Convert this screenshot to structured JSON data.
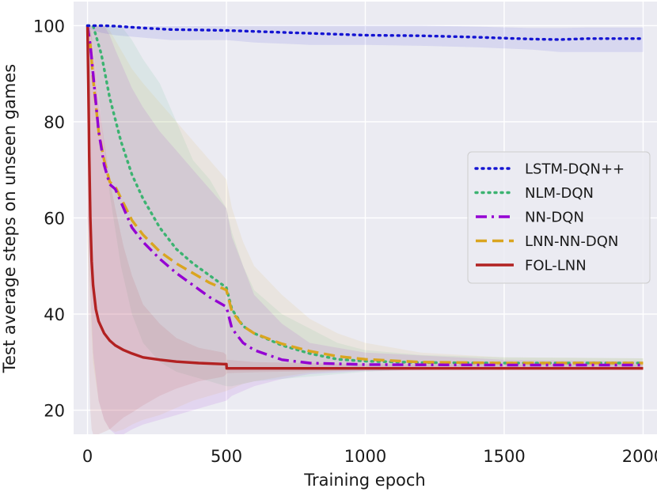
{
  "chart_data": {
    "type": "line",
    "xlabel": "Training epoch",
    "ylabel": "Test average steps on unseen games",
    "xlim": [
      -50,
      2050
    ],
    "ylim": [
      15,
      105
    ],
    "x_ticks": [
      0,
      500,
      1000,
      1500,
      2000
    ],
    "x_tick_labels": [
      "0",
      "500",
      "1000",
      "1500",
      "2000"
    ],
    "y_ticks": [
      20,
      40,
      60,
      80,
      100
    ],
    "y_tick_labels": [
      "20",
      "40",
      "60",
      "80",
      "100"
    ],
    "grid": true,
    "background": "#ebebf2",
    "legend_position": "center-right",
    "series": [
      {
        "name": "LSTM-DQN++",
        "color": "#1414d2",
        "style": "dotted",
        "x": [
          0,
          20,
          50,
          100,
          200,
          300,
          400,
          500,
          600,
          800,
          1000,
          1200,
          1400,
          1600,
          1700,
          1800,
          2000
        ],
        "y": [
          100,
          100,
          100,
          99.9,
          99.5,
          99.2,
          99.1,
          99.0,
          98.8,
          98.4,
          98.0,
          97.9,
          97.6,
          97.2,
          97.1,
          97.3,
          97.3
        ],
        "band_lower": [
          99.5,
          99,
          98.5,
          98,
          97.5,
          97,
          97,
          97,
          96.5,
          96,
          96,
          95.8,
          95.5,
          95,
          94.5,
          94.5,
          94.5
        ],
        "band_upper": [
          100,
          100,
          100,
          100,
          100,
          100,
          100,
          100,
          100,
          100,
          100,
          100,
          99.8,
          99.5,
          99.5,
          99.6,
          99.6
        ]
      },
      {
        "name": "NLM-DQN",
        "color": "#3cb371",
        "style": "dotted",
        "x": [
          0,
          20,
          50,
          80,
          120,
          160,
          200,
          260,
          320,
          380,
          440,
          500,
          520,
          560,
          600,
          700,
          800,
          900,
          1000,
          1200,
          1500,
          2000
        ],
        "y": [
          100,
          100,
          94,
          85,
          76,
          69,
          64,
          58,
          53.5,
          50.5,
          48,
          45.5,
          41,
          37.5,
          36,
          33.5,
          31.8,
          30.6,
          30.2,
          29.9,
          29.8,
          29.8
        ],
        "band_lower": [
          100,
          96,
          80,
          65,
          50,
          40,
          34,
          30,
          28,
          27,
          26,
          25,
          25,
          25.5,
          26,
          26.5,
          27,
          27.5,
          28,
          28.5,
          28.7,
          28.8
        ],
        "band_upper": [
          100,
          100,
          100,
          100,
          100,
          97,
          93,
          88,
          80,
          72,
          68,
          62,
          57,
          50,
          45,
          40,
          37,
          34,
          32.5,
          31.5,
          31,
          30.8
        ]
      },
      {
        "name": "NN-DQN",
        "color": "#9400d3",
        "style": "dashdot",
        "x": [
          0,
          10,
          20,
          40,
          60,
          80,
          100,
          130,
          160,
          200,
          260,
          320,
          380,
          440,
          500,
          520,
          560,
          600,
          700,
          800,
          1000,
          1500,
          2000
        ],
        "y": [
          100,
          96,
          90,
          78,
          71,
          67,
          66,
          62,
          58,
          55,
          51.5,
          48.5,
          46,
          43.5,
          41.5,
          37,
          34,
          32.5,
          30.5,
          29.8,
          29.5,
          29.4,
          29.4
        ],
        "band_lower": [
          60,
          45,
          32,
          22,
          18,
          16,
          15,
          15,
          16,
          17,
          18,
          19,
          20,
          21,
          22,
          23,
          24,
          25,
          26.5,
          27.5,
          28.2,
          28.6,
          28.7
        ],
        "band_upper": [
          100,
          100,
          100,
          100,
          100,
          98,
          95,
          91,
          87,
          83,
          78,
          74,
          70,
          66,
          62,
          56,
          50,
          44,
          38,
          34,
          32,
          30.5,
          30.2
        ]
      },
      {
        "name": "LNN-NN-DQN",
        "color": "#daa520",
        "style": "dashed",
        "x": [
          0,
          10,
          20,
          40,
          60,
          80,
          100,
          130,
          160,
          200,
          260,
          320,
          380,
          440,
          500,
          520,
          560,
          600,
          700,
          800,
          900,
          1000,
          1200,
          1500,
          2000
        ],
        "y": [
          100,
          96,
          89,
          78,
          72,
          67.5,
          66.5,
          63,
          59.5,
          56.5,
          53,
          50.5,
          48.5,
          46.5,
          45,
          40.5,
          37.5,
          36,
          33.8,
          32.3,
          31.2,
          30.6,
          30,
          29.8,
          29.8
        ],
        "band_lower": [
          55,
          42,
          30,
          22,
          18,
          16,
          15.5,
          16,
          17,
          18,
          19,
          20.5,
          22,
          23,
          24,
          24.5,
          25.5,
          26,
          27,
          27.8,
          28.2,
          28.5,
          28.7,
          28.8,
          28.8
        ],
        "band_upper": [
          100,
          100,
          100,
          100,
          100,
          99,
          97,
          94,
          91,
          88,
          84,
          80,
          76,
          72,
          68,
          62,
          55,
          50,
          44,
          39,
          36,
          34,
          32,
          31,
          30.8
        ]
      },
      {
        "name": "FOL-LNN",
        "color": "#b22222",
        "style": "solid",
        "x": [
          0,
          3,
          6,
          10,
          15,
          20,
          30,
          40,
          60,
          80,
          100,
          130,
          160,
          200,
          260,
          320,
          400,
          490,
          500,
          501,
          600,
          800,
          1000,
          1500,
          2000
        ],
        "y": [
          100,
          88,
          73,
          60,
          51,
          46,
          41,
          38.5,
          36,
          34.5,
          33.5,
          32.5,
          31.8,
          31.0,
          30.5,
          30.1,
          29.8,
          29.6,
          29.6,
          28.7,
          28.7,
          28.7,
          28.7,
          28.7,
          28.7
        ],
        "band_lower": [
          60,
          40,
          28,
          20,
          16,
          15,
          15,
          15,
          15.5,
          16,
          17,
          18.5,
          19.5,
          21,
          23,
          24.5,
          26,
          27,
          27.5,
          27.7,
          27.9,
          28.1,
          28.2,
          28.3,
          28.3
        ],
        "band_upper": [
          100,
          100,
          100,
          100,
          98,
          95,
          90,
          84,
          76,
          68,
          62,
          54,
          48,
          42,
          38,
          35,
          33,
          32,
          31.5,
          30.5,
          30,
          29.8,
          29.6,
          29.5,
          29.5
        ]
      }
    ]
  }
}
